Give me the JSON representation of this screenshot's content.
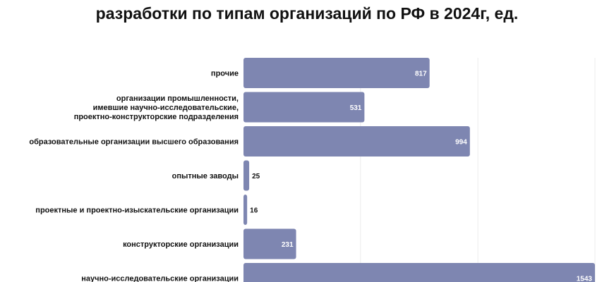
{
  "title": "разработки по типам организаций по РФ в 2024г, ед.",
  "colors": {
    "bar": "#7e86b1",
    "grid": "#ececec"
  },
  "chart_data": {
    "type": "bar",
    "orientation": "horizontal",
    "categories": [
      [
        "прочие"
      ],
      [
        "организации промышленности,",
        "имевшие научно-исследовательские,",
        "проектно-конструкторские подразделения"
      ],
      [
        "образовательные организации высшего образования"
      ],
      [
        "опытные заводы"
      ],
      [
        "проектные и проектно-изыскательские организации"
      ],
      [
        "конструкторские организации"
      ],
      [
        "научно-исследовательские организации"
      ]
    ],
    "values": [
      817,
      531,
      994,
      25,
      16,
      231,
      1543
    ],
    "xlim": [
      0,
      1543
    ],
    "grid": true,
    "legend": "none",
    "data_labels": true
  }
}
